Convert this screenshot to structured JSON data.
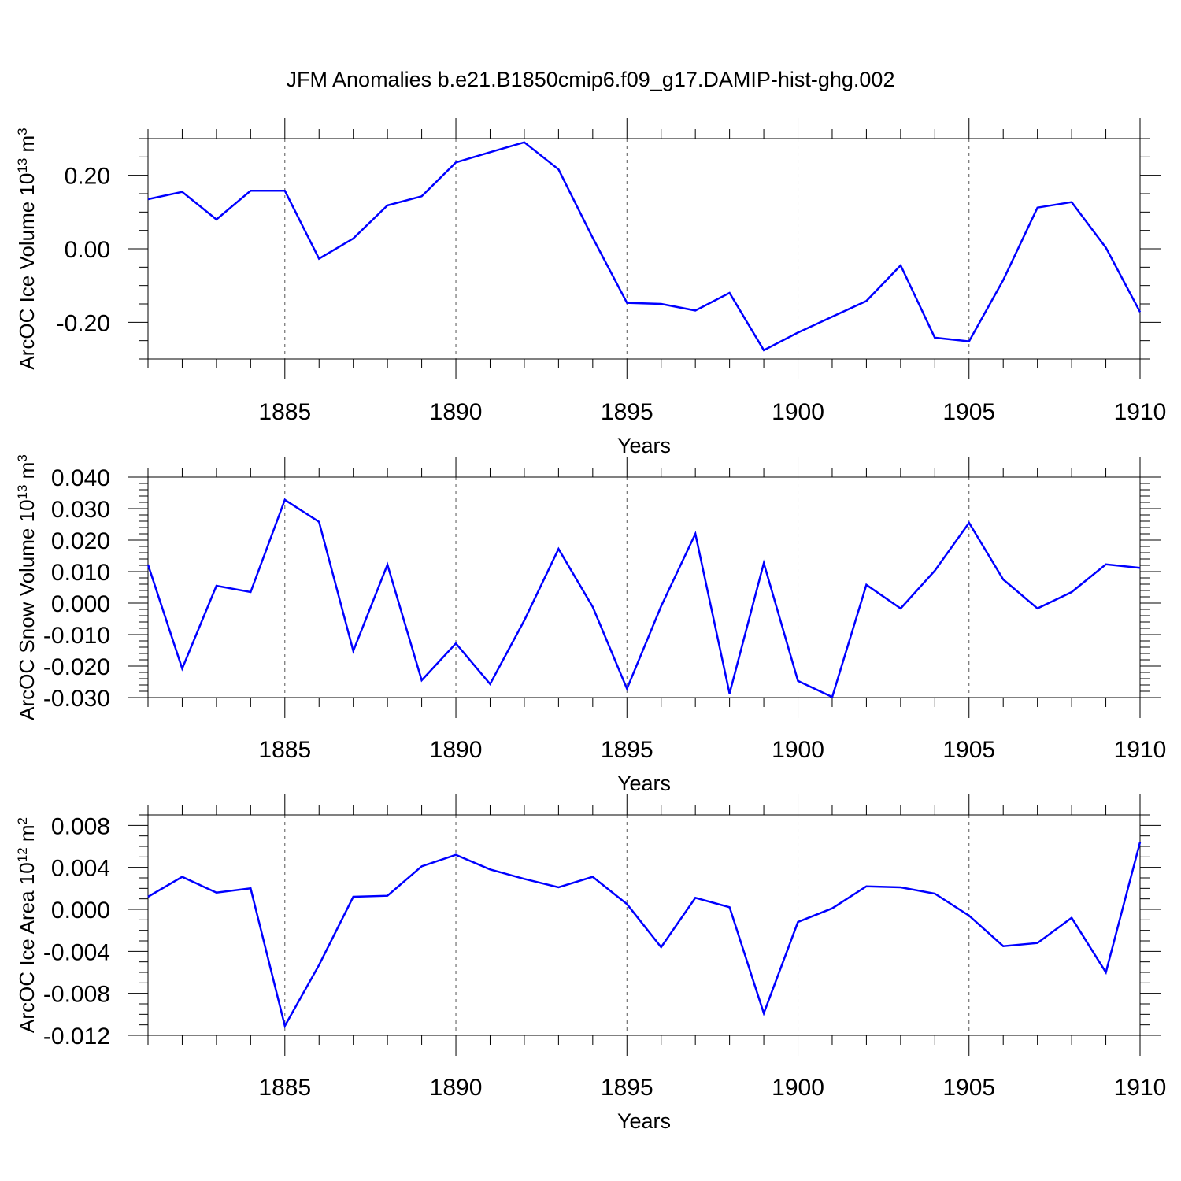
{
  "title": "JFM Anomalies b.e21.B1850cmip6.f09_g17.DAMIP-hist-ghg.002",
  "colors": {
    "line": "#0000ff",
    "axis": "#000000",
    "grid": "#555555"
  },
  "chart_data": [
    {
      "type": "line",
      "name": "ice-volume",
      "ylabel": "ArcOC Ice Volume 10",
      "ylabel_sup": "13",
      "ylabel_unit": "m",
      "ylabel_unit_sup": "3",
      "xlabel": "Years",
      "xlim": [
        1881,
        1910
      ],
      "ylim": [
        -0.3,
        0.3
      ],
      "xticks": [
        1885,
        1890,
        1895,
        1900,
        1905,
        1910
      ],
      "xtick_labels": [
        "1885",
        "1890",
        "1895",
        "1900",
        "1905",
        "1910"
      ],
      "yticks": [
        0.2,
        0.0,
        -0.2
      ],
      "ytick_labels": [
        "0.20",
        "0.00",
        "-0.20"
      ],
      "yminor_step": 0.05,
      "grid_x": [
        1885,
        1890,
        1895,
        1900,
        1905
      ],
      "x": [
        1881,
        1882,
        1883,
        1884,
        1885,
        1886,
        1887,
        1888,
        1889,
        1890,
        1891,
        1892,
        1893,
        1894,
        1895,
        1896,
        1897,
        1898,
        1899,
        1900,
        1901,
        1902,
        1903,
        1904,
        1905,
        1906,
        1907,
        1908,
        1909,
        1910
      ],
      "values": [
        0.135,
        0.155,
        0.08,
        0.158,
        0.158,
        -0.027,
        0.028,
        0.118,
        0.143,
        0.235,
        0.263,
        0.29,
        0.216,
        0.03,
        -0.147,
        -0.15,
        -0.168,
        -0.12,
        -0.276,
        -0.228,
        -0.185,
        -0.142,
        -0.045,
        -0.242,
        -0.252,
        -0.085,
        0.112,
        0.127,
        0.003,
        -0.172
      ]
    },
    {
      "type": "line",
      "name": "snow-volume",
      "ylabel": "ArcOC Snow Volume 10",
      "ylabel_sup": "13",
      "ylabel_unit": "m",
      "ylabel_unit_sup": "3",
      "xlabel": "Years",
      "xlim": [
        1881,
        1910
      ],
      "ylim": [
        -0.03,
        0.04
      ],
      "xticks": [
        1885,
        1890,
        1895,
        1900,
        1905,
        1910
      ],
      "xtick_labels": [
        "1885",
        "1890",
        "1895",
        "1900",
        "1905",
        "1910"
      ],
      "yticks": [
        0.04,
        0.03,
        0.02,
        0.01,
        0.0,
        -0.01,
        -0.02,
        -0.03
      ],
      "ytick_labels": [
        "0.040",
        "0.030",
        "0.020",
        "0.010",
        "0.000",
        "-0.010",
        "-0.020",
        "-0.030"
      ],
      "yminor_step": 0.002,
      "grid_x": [
        1885,
        1890,
        1895,
        1900,
        1905
      ],
      "x": [
        1881,
        1882,
        1883,
        1884,
        1885,
        1886,
        1887,
        1888,
        1889,
        1890,
        1891,
        1892,
        1893,
        1894,
        1895,
        1896,
        1897,
        1898,
        1899,
        1900,
        1901,
        1902,
        1903,
        1904,
        1905,
        1906,
        1907,
        1908,
        1909,
        1910
      ],
      "values": [
        0.0122,
        -0.0208,
        0.0055,
        0.0035,
        0.0328,
        0.0258,
        -0.0152,
        0.0122,
        -0.0245,
        -0.0128,
        -0.0257,
        -0.0055,
        0.0172,
        -0.0012,
        -0.0272,
        -0.001,
        0.022,
        -0.0287,
        0.0127,
        -0.0247,
        -0.0298,
        0.0058,
        -0.0017,
        0.0103,
        0.0255,
        0.0075,
        -0.0017,
        0.0035,
        0.0123,
        0.0112
      ]
    },
    {
      "type": "line",
      "name": "ice-area",
      "ylabel": "ArcOC Ice Area 10",
      "ylabel_sup": "12",
      "ylabel_unit": "m",
      "ylabel_unit_sup": "2",
      "xlabel": "Years",
      "xlim": [
        1881,
        1910
      ],
      "ylim": [
        -0.012,
        0.009
      ],
      "xticks": [
        1885,
        1890,
        1895,
        1900,
        1905,
        1910
      ],
      "xtick_labels": [
        "1885",
        "1890",
        "1895",
        "1900",
        "1905",
        "1910"
      ],
      "yticks": [
        0.008,
        0.004,
        0.0,
        -0.004,
        -0.008,
        -0.012
      ],
      "ytick_labels": [
        "0.008",
        "0.004",
        "0.000",
        "-0.004",
        "-0.008",
        "-0.012"
      ],
      "yminor_step": 0.001,
      "grid_x": [
        1885,
        1890,
        1895,
        1900,
        1905
      ],
      "x": [
        1881,
        1882,
        1883,
        1884,
        1885,
        1886,
        1887,
        1888,
        1889,
        1890,
        1891,
        1892,
        1893,
        1894,
        1895,
        1896,
        1897,
        1898,
        1899,
        1900,
        1901,
        1902,
        1903,
        1904,
        1905,
        1906,
        1907,
        1908,
        1909,
        1910
      ],
      "values": [
        0.0012,
        0.0031,
        0.0016,
        0.002,
        -0.0111,
        -0.0053,
        0.0012,
        0.0013,
        0.0041,
        0.0052,
        0.0038,
        0.0029,
        0.0021,
        0.0031,
        0.0005,
        -0.0036,
        0.0011,
        0.0002,
        -0.0099,
        -0.0012,
        0.0001,
        0.0022,
        0.0021,
        0.0015,
        -0.0006,
        -0.0035,
        -0.0032,
        -0.0008,
        -0.006,
        0.0064
      ]
    }
  ]
}
